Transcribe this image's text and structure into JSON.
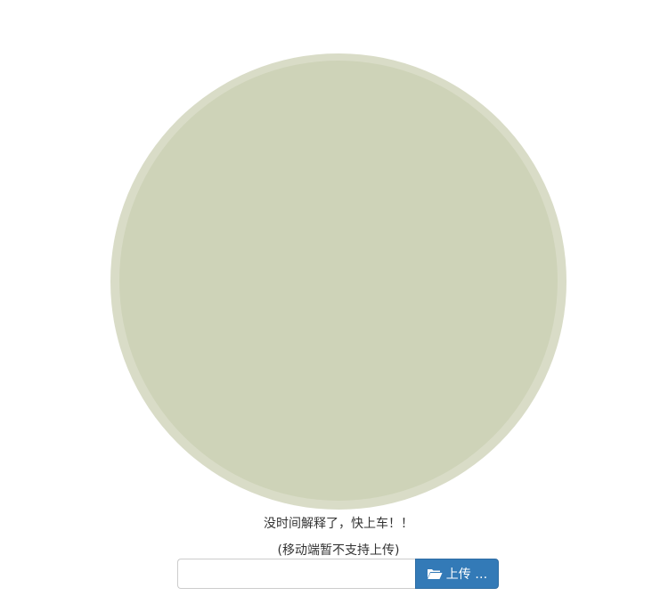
{
  "main": {
    "tagline": "没时间解释了，快上车！！",
    "note": "(移动端暂不支持上传)"
  },
  "upload": {
    "input_value": "",
    "button_label": "上传 …",
    "icon": "folder-open-icon"
  },
  "colors": {
    "circle_outer": "#d9dcc7",
    "circle_inner": "#ced3b8",
    "button_bg": "#337ab7"
  }
}
